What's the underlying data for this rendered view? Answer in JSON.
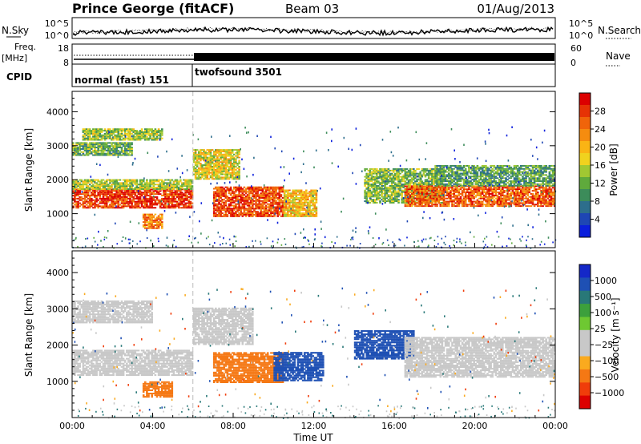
{
  "header": {
    "title": "Prince George (fitACF)",
    "beam": "Beam 03",
    "date": "01/Aug/2013"
  },
  "noise_panel": {
    "left_label": "N.Sky",
    "left_ticks": [
      "10^5",
      "10^0"
    ],
    "right_ticks": [
      "10^5",
      "10^0"
    ],
    "right_label": "N.Search"
  },
  "freq_panel": {
    "left_label_1": "Freq.",
    "left_label_2": "[MHz]",
    "left_ticks": [
      "18",
      "8"
    ],
    "right_ticks": [
      "60",
      "0"
    ],
    "right_label": "Nave"
  },
  "cpid_panel": {
    "label": "CPID",
    "modes": [
      {
        "name": "normal (fast) 151",
        "start_hour": 0,
        "end_hour": 6
      },
      {
        "name": "twofsound 3501",
        "start_hour": 6,
        "end_hour": 24
      }
    ]
  },
  "colors": {
    "power_scale": [
      "#0a1edc",
      "#1e46b4",
      "#2d6e8c",
      "#3c8c5a",
      "#5faa3c",
      "#a0c832",
      "#f0d21e",
      "#fab414",
      "#f58c0f",
      "#f0640a",
      "#e63205",
      "#dc0000"
    ],
    "velocity_scale": [
      "#dc0000",
      "#f03c0a",
      "#f57814",
      "#faaa1e",
      "#c8c8c8",
      "#c8c8c8",
      "#6ec832",
      "#3ca03c",
      "#287878",
      "#1e50b4",
      "#1428c8"
    ],
    "ground_scatter": "#c8c8c8"
  },
  "chart_data": [
    {
      "type": "heatmap",
      "title": "Power",
      "ylabel": "Slant Range [km]",
      "yticks": [
        "1000",
        "2000",
        "3000",
        "4000"
      ],
      "ylim": [
        0,
        4600
      ],
      "xlim": [
        0,
        24
      ],
      "colorbar_label": "Power [dB]",
      "colorbar_ticks": [
        "28",
        "24",
        "20",
        "16",
        "12",
        "8",
        "4"
      ],
      "colorbar_range": [
        0,
        30
      ],
      "blobs": [
        {
          "t0": 0.0,
          "t1": 6.0,
          "r0": 1150,
          "r1": 1700,
          "value": 26
        },
        {
          "t0": 0.0,
          "t1": 6.0,
          "r0": 1700,
          "r1": 2000,
          "value": 14
        },
        {
          "t0": 0.0,
          "t1": 3.0,
          "r0": 2700,
          "r1": 3100,
          "value": 11
        },
        {
          "t0": 0.5,
          "t1": 4.5,
          "r0": 3150,
          "r1": 3500,
          "value": 13
        },
        {
          "t0": 3.5,
          "t1": 4.5,
          "r0": 550,
          "r1": 1000,
          "value": 22
        },
        {
          "t0": 6.0,
          "t1": 8.3,
          "r0": 2000,
          "r1": 2900,
          "value": 16
        },
        {
          "t0": 7.0,
          "t1": 10.5,
          "r0": 900,
          "r1": 1800,
          "value": 25
        },
        {
          "t0": 10.5,
          "t1": 12.2,
          "r0": 900,
          "r1": 1700,
          "value": 18
        },
        {
          "t0": 14.5,
          "t1": 18.5,
          "r0": 1300,
          "r1": 2300,
          "value": 12
        },
        {
          "t0": 16.5,
          "t1": 24.0,
          "r0": 1200,
          "r1": 1800,
          "value": 24
        },
        {
          "t0": 18.0,
          "t1": 24.0,
          "r0": 1800,
          "r1": 2400,
          "value": 10
        }
      ]
    },
    {
      "type": "heatmap",
      "title": "Velocity",
      "ylabel": "Slant Range [km]",
      "yticks": [
        "1000",
        "2000",
        "3000",
        "4000"
      ],
      "ylim": [
        0,
        4600
      ],
      "xlim": [
        0,
        24
      ],
      "xticks": [
        "00:00",
        "04:00",
        "08:00",
        "12:00",
        "16:00",
        "20:00",
        "00:00"
      ],
      "xlabel": "Time UT",
      "colorbar_label": "Velocity [m s⁻¹]",
      "colorbar_ticks": [
        "1000",
        "500",
        "100",
        "25",
        "−25",
        "−100",
        "−500",
        "−1000"
      ],
      "blobs": [
        {
          "t0": 0.0,
          "t1": 6.0,
          "r0": 1150,
          "r1": 1850,
          "value": 0
        },
        {
          "t0": 0.0,
          "t1": 4.0,
          "r0": 2600,
          "r1": 3200,
          "value": 0
        },
        {
          "t0": 3.5,
          "t1": 5.0,
          "r0": 550,
          "r1": 1000,
          "value": -300
        },
        {
          "t0": 6.0,
          "t1": 9.0,
          "r0": 2000,
          "r1": 3000,
          "value": 0
        },
        {
          "t0": 7.0,
          "t1": 10.5,
          "r0": 950,
          "r1": 1800,
          "value": -250
        },
        {
          "t0": 10.0,
          "t1": 12.5,
          "r0": 1000,
          "r1": 1800,
          "value": 600
        },
        {
          "t0": 14.0,
          "t1": 17.0,
          "r0": 1600,
          "r1": 2400,
          "value": 800
        },
        {
          "t0": 16.5,
          "t1": 24.0,
          "r0": 1100,
          "r1": 2200,
          "value": 0
        }
      ]
    }
  ]
}
